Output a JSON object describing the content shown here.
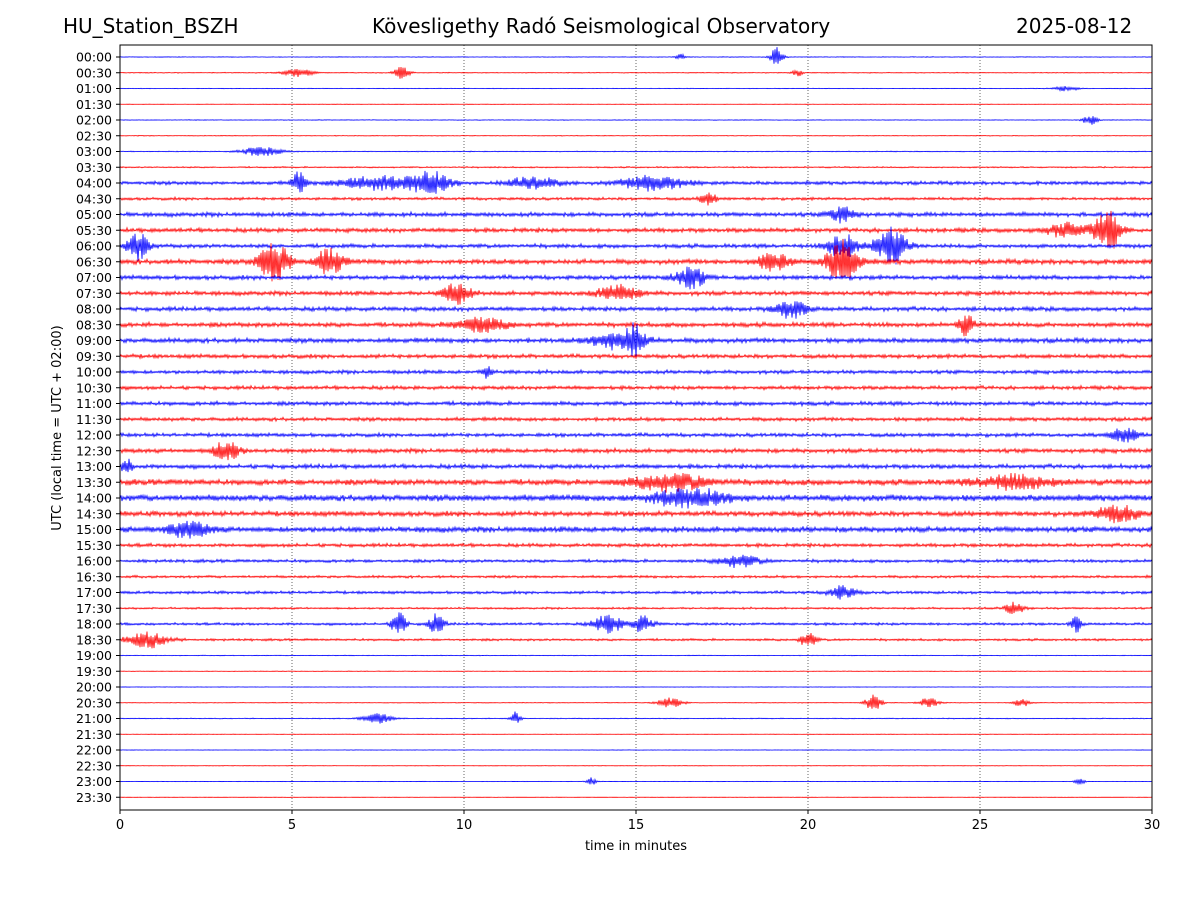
{
  "header": {
    "station": "HU_Station_BSZH",
    "observatory": "Kövesligethy Radó Seismological Observatory",
    "date": "2025-08-12"
  },
  "chart_data": {
    "type": "line",
    "title": "Kövesligethy Radó Seismological Observatory",
    "xlabel": "time in minutes",
    "ylabel": "UTC (local time = UTC + 02:00)",
    "xlim": [
      0,
      30
    ],
    "xticks": [
      0,
      5,
      10,
      15,
      20,
      25,
      30
    ],
    "grid": "vertical dotted lines at x ticks",
    "colors": {
      "even_rows": "#0000ff",
      "odd_rows": "#ff0000"
    },
    "rows": [
      "00:00",
      "00:30",
      "01:00",
      "01:30",
      "02:00",
      "02:30",
      "03:00",
      "03:30",
      "04:00",
      "04:30",
      "05:00",
      "05:30",
      "06:00",
      "06:30",
      "07:00",
      "07:30",
      "08:00",
      "08:30",
      "09:00",
      "09:30",
      "10:00",
      "10:30",
      "11:00",
      "11:30",
      "12:00",
      "12:30",
      "13:00",
      "13:30",
      "14:00",
      "14:30",
      "15:00",
      "15:30",
      "16:00",
      "16:30",
      "17:00",
      "17:30",
      "18:00",
      "18:30",
      "19:00",
      "19:30",
      "20:00",
      "20:30",
      "21:00",
      "21:30",
      "22:00",
      "22:30",
      "23:00",
      "23:30"
    ],
    "noise_level": [
      0.05,
      0.06,
      0.04,
      0.03,
      0.05,
      0.05,
      0.06,
      0.1,
      0.25,
      0.2,
      0.3,
      0.3,
      0.28,
      0.35,
      0.3,
      0.3,
      0.3,
      0.32,
      0.33,
      0.28,
      0.26,
      0.26,
      0.28,
      0.26,
      0.26,
      0.3,
      0.3,
      0.4,
      0.45,
      0.35,
      0.4,
      0.25,
      0.22,
      0.18,
      0.2,
      0.14,
      0.18,
      0.16,
      0.05,
      0.04,
      0.03,
      0.05,
      0.06,
      0.03,
      0.03,
      0.03,
      0.03,
      0.02
    ],
    "events": [
      {
        "row": 0,
        "t": 19.1,
        "amp": 1.0,
        "dur": 0.25
      },
      {
        "row": 0,
        "t": 16.3,
        "amp": 0.3,
        "dur": 0.2
      },
      {
        "row": 1,
        "t": 5.2,
        "amp": 0.4,
        "dur": 0.6
      },
      {
        "row": 1,
        "t": 8.2,
        "amp": 0.7,
        "dur": 0.3
      },
      {
        "row": 1,
        "t": 19.7,
        "amp": 0.35,
        "dur": 0.2
      },
      {
        "row": 2,
        "t": 27.5,
        "amp": 0.25,
        "dur": 0.5
      },
      {
        "row": 4,
        "t": 28.2,
        "amp": 0.5,
        "dur": 0.3
      },
      {
        "row": 6,
        "t": 4.1,
        "amp": 0.5,
        "dur": 0.8
      },
      {
        "row": 8,
        "t": 5.2,
        "amp": 1.2,
        "dur": 0.25
      },
      {
        "row": 8,
        "t": 7.5,
        "amp": 0.7,
        "dur": 1.5
      },
      {
        "row": 8,
        "t": 9.0,
        "amp": 1.1,
        "dur": 0.8
      },
      {
        "row": 8,
        "t": 12.0,
        "amp": 0.6,
        "dur": 1.0
      },
      {
        "row": 8,
        "t": 15.5,
        "amp": 0.8,
        "dur": 1.2
      },
      {
        "row": 9,
        "t": 17.1,
        "amp": 0.7,
        "dur": 0.3
      },
      {
        "row": 10,
        "t": 21.0,
        "amp": 0.8,
        "dur": 0.5
      },
      {
        "row": 11,
        "t": 28.7,
        "amp": 2.2,
        "dur": 0.5
      },
      {
        "row": 11,
        "t": 27.5,
        "amp": 0.7,
        "dur": 0.8
      },
      {
        "row": 12,
        "t": 0.5,
        "amp": 1.5,
        "dur": 0.4
      },
      {
        "row": 12,
        "t": 21.0,
        "amp": 1.3,
        "dur": 0.6
      },
      {
        "row": 12,
        "t": 22.4,
        "amp": 1.9,
        "dur": 0.6
      },
      {
        "row": 13,
        "t": 4.5,
        "amp": 1.9,
        "dur": 0.6
      },
      {
        "row": 13,
        "t": 6.1,
        "amp": 1.4,
        "dur": 0.5
      },
      {
        "row": 13,
        "t": 19.0,
        "amp": 0.9,
        "dur": 0.6
      },
      {
        "row": 13,
        "t": 21.0,
        "amp": 2.2,
        "dur": 0.6
      },
      {
        "row": 14,
        "t": 16.6,
        "amp": 1.1,
        "dur": 0.6
      },
      {
        "row": 15,
        "t": 9.8,
        "amp": 1.1,
        "dur": 0.5
      },
      {
        "row": 15,
        "t": 14.5,
        "amp": 0.8,
        "dur": 0.8
      },
      {
        "row": 16,
        "t": 19.5,
        "amp": 0.9,
        "dur": 0.6
      },
      {
        "row": 17,
        "t": 10.5,
        "amp": 0.7,
        "dur": 1.0
      },
      {
        "row": 17,
        "t": 24.6,
        "amp": 1.0,
        "dur": 0.3
      },
      {
        "row": 18,
        "t": 14.5,
        "amp": 0.9,
        "dur": 1.0
      },
      {
        "row": 18,
        "t": 15.0,
        "amp": 1.3,
        "dur": 0.3
      },
      {
        "row": 20,
        "t": 10.7,
        "amp": 0.7,
        "dur": 0.2
      },
      {
        "row": 24,
        "t": 29.2,
        "amp": 0.8,
        "dur": 0.5
      },
      {
        "row": 25,
        "t": 3.1,
        "amp": 1.1,
        "dur": 0.5
      },
      {
        "row": 26,
        "t": 0.2,
        "amp": 0.8,
        "dur": 0.2
      },
      {
        "row": 27,
        "t": 16.0,
        "amp": 0.8,
        "dur": 1.5
      },
      {
        "row": 27,
        "t": 26.0,
        "amp": 0.7,
        "dur": 1.5
      },
      {
        "row": 28,
        "t": 16.5,
        "amp": 0.9,
        "dur": 1.5
      },
      {
        "row": 29,
        "t": 29.0,
        "amp": 0.9,
        "dur": 0.8
      },
      {
        "row": 30,
        "t": 2.0,
        "amp": 0.8,
        "dur": 0.8
      },
      {
        "row": 32,
        "t": 18.0,
        "amp": 0.6,
        "dur": 0.8
      },
      {
        "row": 34,
        "t": 21.0,
        "amp": 0.7,
        "dur": 0.5
      },
      {
        "row": 35,
        "t": 26.0,
        "amp": 0.6,
        "dur": 0.4
      },
      {
        "row": 36,
        "t": 8.1,
        "amp": 1.6,
        "dur": 0.25
      },
      {
        "row": 36,
        "t": 9.2,
        "amp": 1.0,
        "dur": 0.3
      },
      {
        "row": 36,
        "t": 14.2,
        "amp": 0.9,
        "dur": 0.6
      },
      {
        "row": 36,
        "t": 15.2,
        "amp": 0.9,
        "dur": 0.4
      },
      {
        "row": 36,
        "t": 27.8,
        "amp": 0.8,
        "dur": 0.2
      },
      {
        "row": 37,
        "t": 0.8,
        "amp": 0.8,
        "dur": 0.8
      },
      {
        "row": 37,
        "t": 20.0,
        "amp": 0.8,
        "dur": 0.3
      },
      {
        "row": 41,
        "t": 16.0,
        "amp": 0.5,
        "dur": 0.5
      },
      {
        "row": 41,
        "t": 21.9,
        "amp": 1.0,
        "dur": 0.3
      },
      {
        "row": 41,
        "t": 23.5,
        "amp": 0.5,
        "dur": 0.4
      },
      {
        "row": 41,
        "t": 26.2,
        "amp": 0.5,
        "dur": 0.3
      },
      {
        "row": 42,
        "t": 7.5,
        "amp": 0.5,
        "dur": 0.6
      },
      {
        "row": 42,
        "t": 11.5,
        "amp": 0.7,
        "dur": 0.2
      },
      {
        "row": 46,
        "t": 13.7,
        "amp": 0.4,
        "dur": 0.2
      },
      {
        "row": 46,
        "t": 27.9,
        "amp": 0.4,
        "dur": 0.2
      }
    ]
  }
}
